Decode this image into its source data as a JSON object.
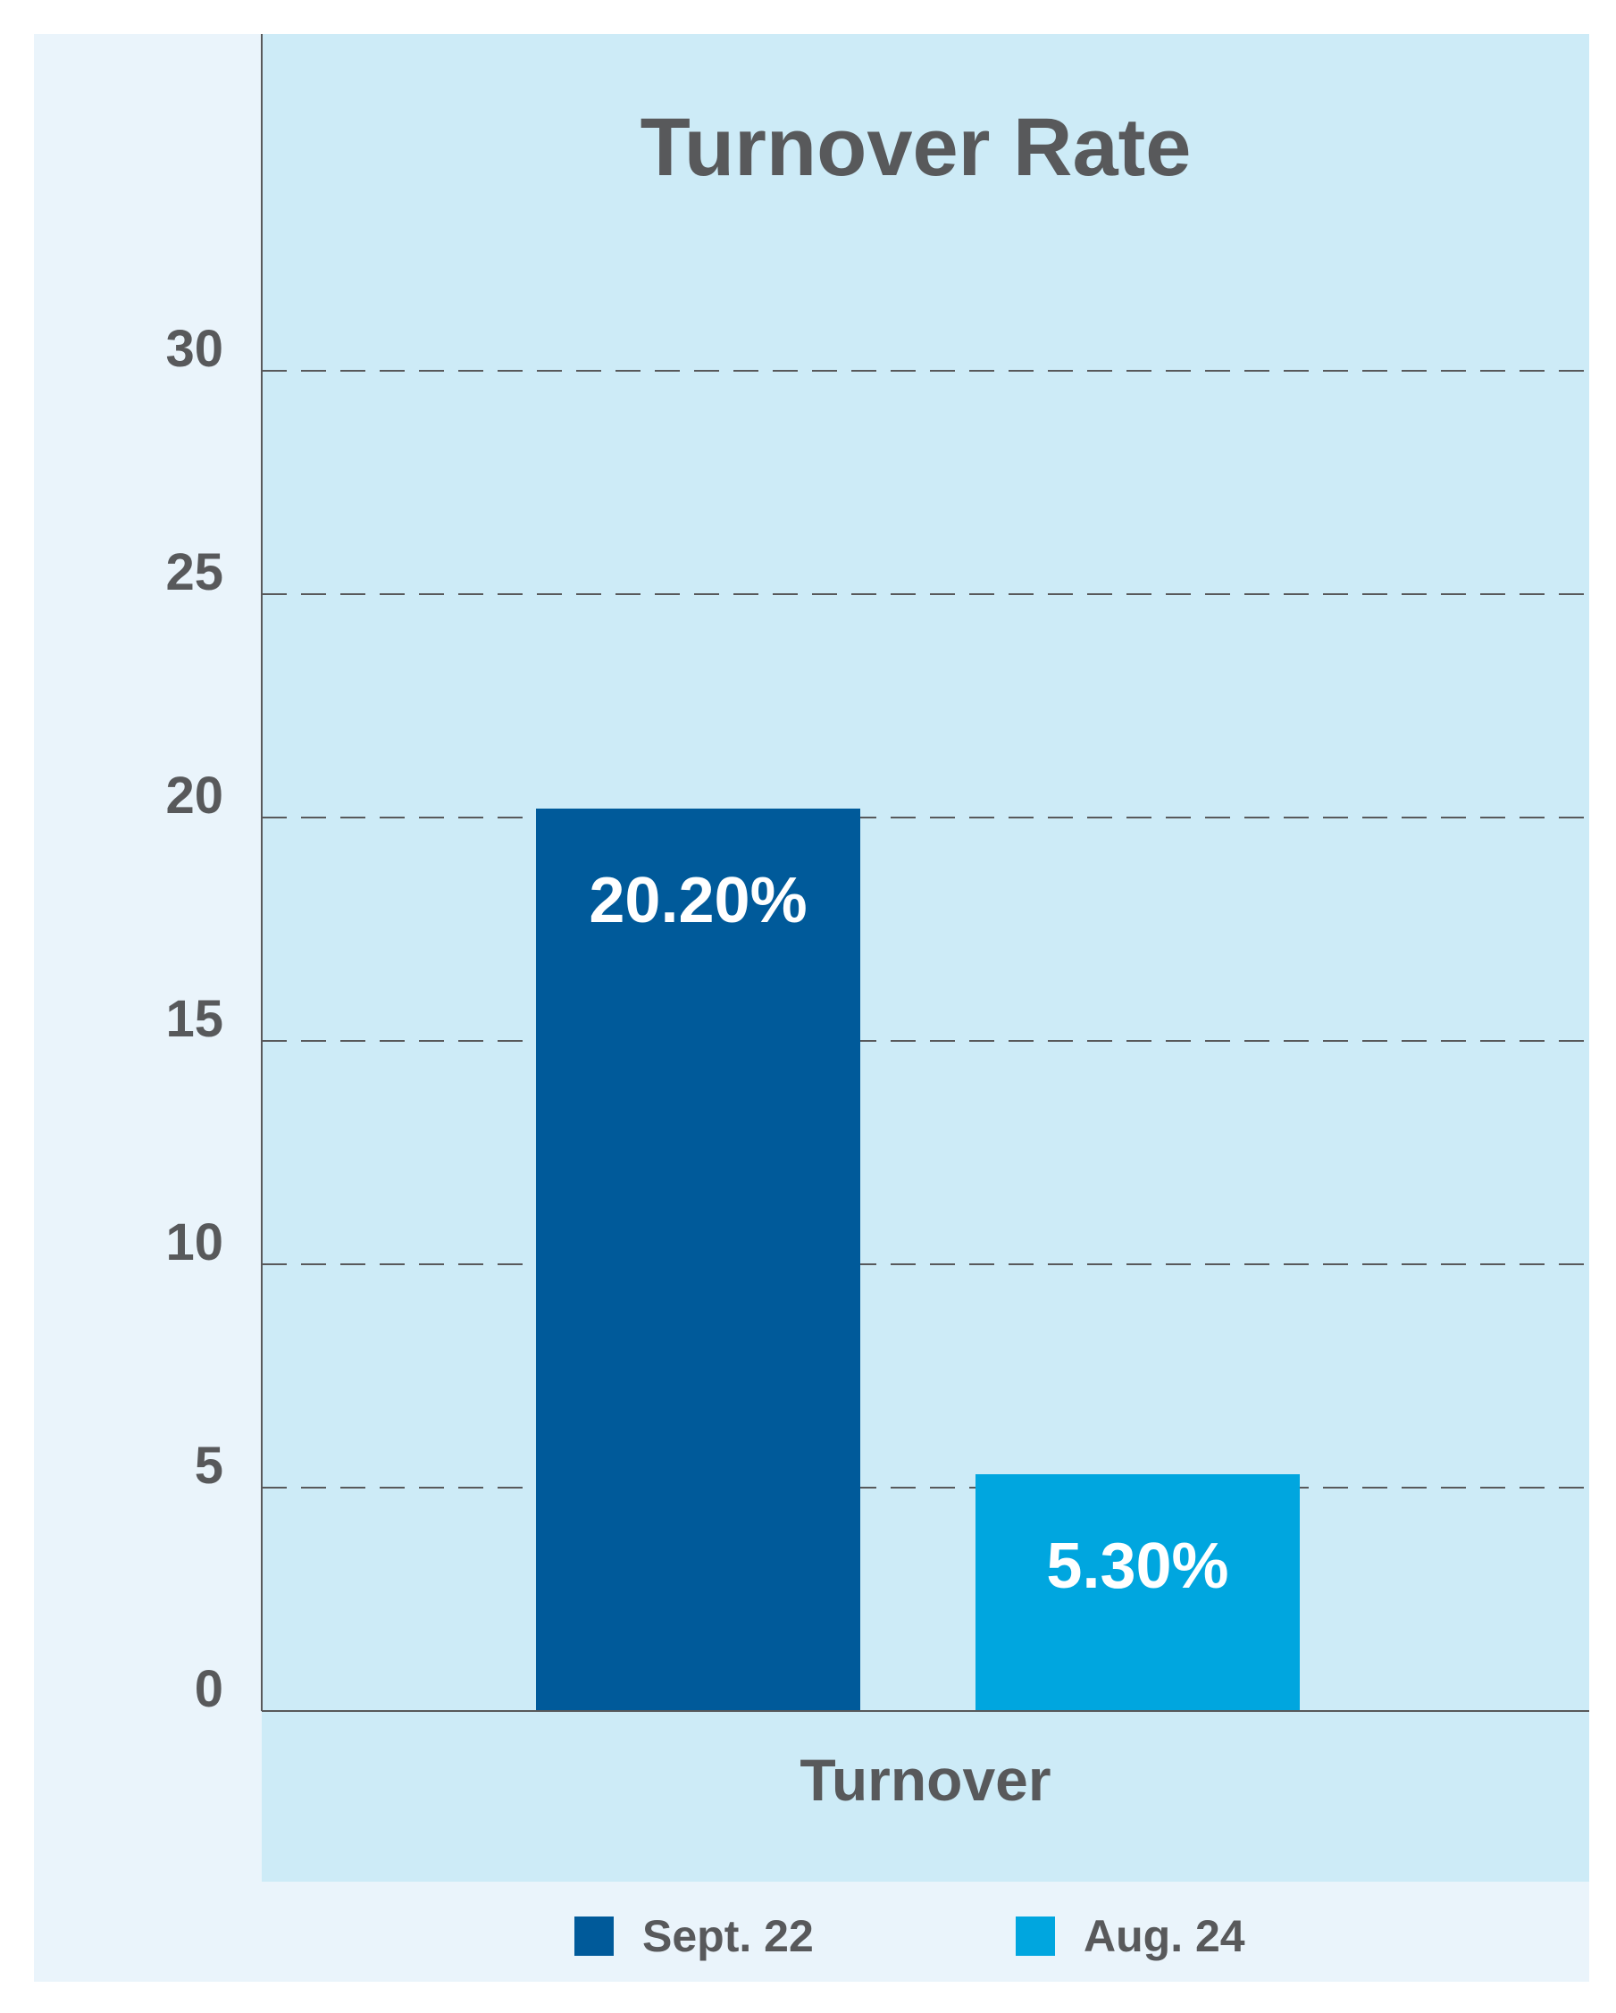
{
  "chart_data": {
    "type": "bar",
    "title": "Turnover Rate",
    "categories": [
      "Turnover"
    ],
    "series": [
      {
        "name": "Sept. 22",
        "values": [
          20.2
        ],
        "label": "20.20%",
        "color": "#005a9a"
      },
      {
        "name": "Aug. 24",
        "values": [
          5.3
        ],
        "label": "5.30%",
        "color": "#00a6df"
      }
    ],
    "yticks": [
      "0",
      "5",
      "10",
      "15",
      "20",
      "25",
      "30"
    ],
    "ytick_values": [
      0,
      5,
      10,
      15,
      20,
      25,
      30
    ],
    "ylim": [
      0,
      30
    ],
    "grid": true,
    "legend_position": "bottom"
  },
  "colors": {
    "outer_background": "#eaf4fb",
    "plot_background": "#cdebf7",
    "axis_and_text": "#58595b"
  }
}
